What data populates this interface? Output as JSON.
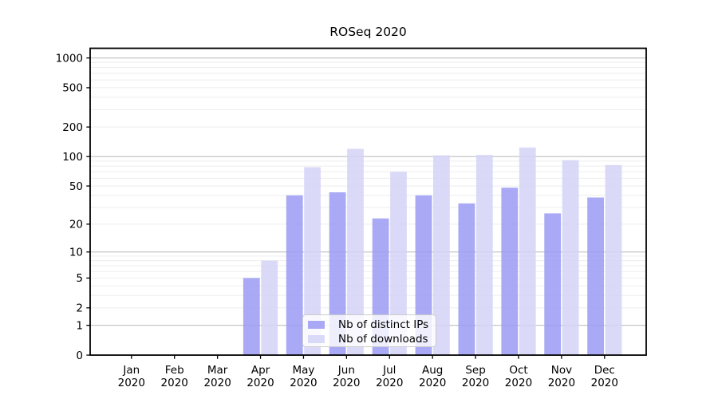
{
  "chart_data": {
    "type": "bar",
    "title": "ROSeq 2020",
    "year_label": "2020",
    "categories": [
      "Jan",
      "Feb",
      "Mar",
      "Apr",
      "May",
      "Jun",
      "Jul",
      "Aug",
      "Sep",
      "Oct",
      "Nov",
      "Dec"
    ],
    "series": [
      {
        "name": "Nb of distinct IPs",
        "color": "#9a9af3",
        "values": [
          0,
          0,
          0,
          5,
          40,
          43,
          23,
          40,
          33,
          48,
          26,
          38
        ]
      },
      {
        "name": "Nb of downloads",
        "color": "#d3d3f7",
        "values": [
          0,
          0,
          0,
          8,
          78,
          120,
          70,
          103,
          104,
          124,
          92,
          82
        ]
      }
    ],
    "bar_opacity": 0.85,
    "yscale": "symlog-log1p",
    "yticks": [
      0,
      1,
      2,
      5,
      10,
      20,
      50,
      100,
      200,
      500,
      1000
    ],
    "ylim": [
      0,
      1250
    ],
    "xlabel": "",
    "ylabel": "",
    "grid": "on",
    "legend_position": "lower center",
    "colors": {
      "major_grid": "#c6c6c6",
      "minor_grid": "#ededed",
      "axis": "#000000",
      "text": "#000000",
      "legend_border": "#cccccc",
      "legend_bg": "rgba(255,255,255,0.8)"
    }
  }
}
